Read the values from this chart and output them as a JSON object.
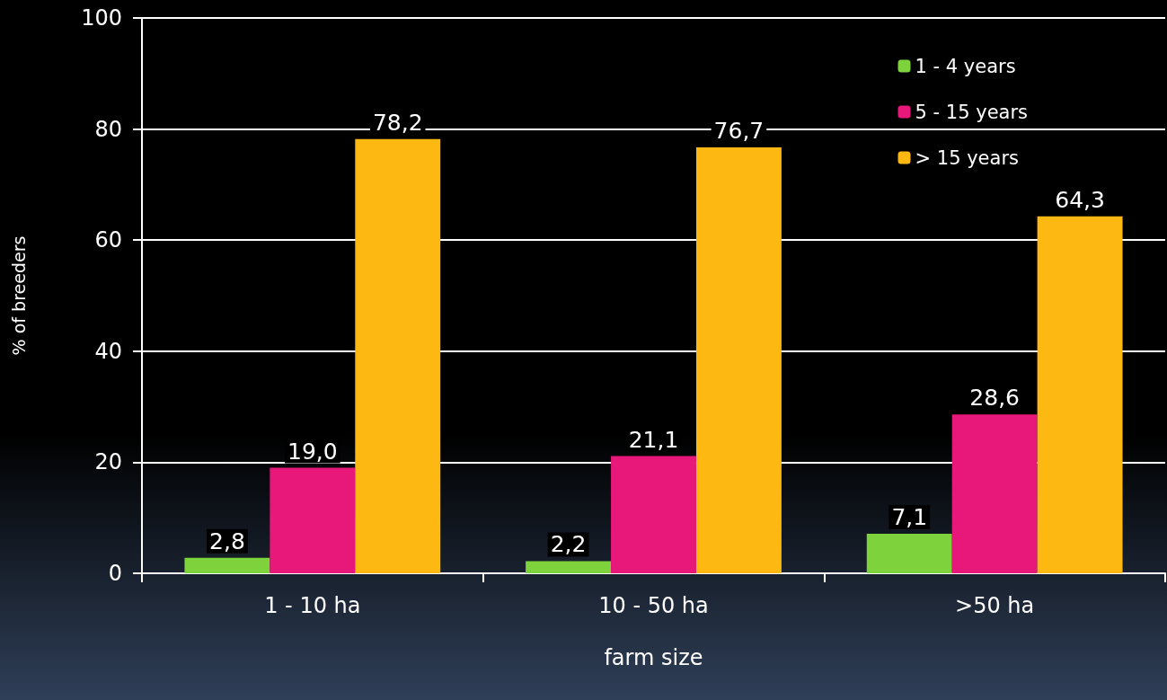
{
  "chart_data": {
    "type": "bar",
    "xlabel": "farm size",
    "ylabel": "% of breeders",
    "categories": [
      "1 - 10 ha",
      "10 - 50 ha",
      ">50 ha"
    ],
    "series": [
      {
        "name": "1 - 4 years",
        "color": "#7ed23c",
        "values": [
          2.8,
          2.2,
          7.1
        ],
        "value_labels": [
          "2,8",
          "2,2",
          "7,1"
        ]
      },
      {
        "name": "5 - 15 years",
        "color": "#e8187a",
        "values": [
          19.0,
          21.1,
          28.6
        ],
        "value_labels": [
          "19,0",
          "21,1",
          "28,6"
        ]
      },
      {
        "name": "> 15 years",
        "color": "#fdb812",
        "values": [
          78.2,
          76.7,
          64.3
        ],
        "value_labels": [
          "78,2",
          "76,7",
          "64,3"
        ]
      }
    ],
    "ylim": [
      0,
      100
    ],
    "yticks": [
      0,
      20,
      40,
      60,
      80,
      100
    ],
    "grid": "y",
    "legend": "top right"
  }
}
